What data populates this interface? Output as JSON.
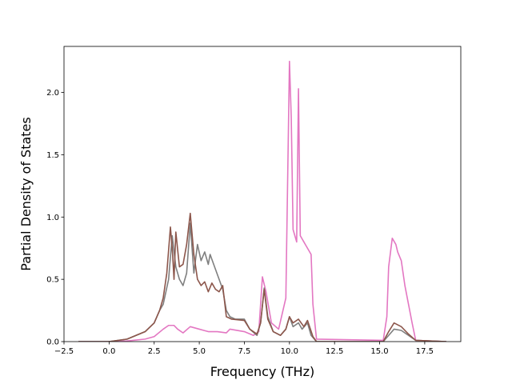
{
  "chart_data": {
    "type": "line",
    "title": "",
    "xlabel": "Frequency (THz)",
    "ylabel": "Partial Density of States",
    "xlim": [
      -2.5,
      19.5
    ],
    "ylim": [
      0,
      2.37
    ],
    "xticks": [
      -2.5,
      0.0,
      2.5,
      5.0,
      7.5,
      10.0,
      12.5,
      15.0,
      17.5
    ],
    "xtick_labels": [
      "−2.5",
      "0.0",
      "2.5",
      "5.0",
      "7.5",
      "10.0",
      "12.5",
      "15.0",
      "17.5"
    ],
    "yticks": [
      0.0,
      0.5,
      1.0,
      1.5,
      2.0
    ],
    "ytick_labels": [
      "0.0",
      "0.5",
      "1.0",
      "1.5",
      "2.0"
    ],
    "grid": false,
    "legend": "none",
    "series": [
      {
        "color": "#e377c2",
        "points": [
          [
            -1.7,
            0
          ],
          [
            0,
            0
          ],
          [
            1,
            0.005
          ],
          [
            2,
            0.02
          ],
          [
            2.5,
            0.04
          ],
          [
            3,
            0.1
          ],
          [
            3.3,
            0.13
          ],
          [
            3.6,
            0.13
          ],
          [
            3.8,
            0.1
          ],
          [
            4.1,
            0.07
          ],
          [
            4.5,
            0.12
          ],
          [
            5,
            0.1
          ],
          [
            5.5,
            0.08
          ],
          [
            6,
            0.08
          ],
          [
            6.5,
            0.07
          ],
          [
            6.7,
            0.1
          ],
          [
            7.5,
            0.08
          ],
          [
            8,
            0.05
          ],
          [
            8.3,
            0.08
          ],
          [
            8.5,
            0.52
          ],
          [
            8.7,
            0.4
          ],
          [
            9,
            0.15
          ],
          [
            9.4,
            0.1
          ],
          [
            9.8,
            0.35
          ],
          [
            10,
            2.25
          ],
          [
            10.1,
            1.8
          ],
          [
            10.2,
            0.9
          ],
          [
            10.4,
            0.8
          ],
          [
            10.5,
            2.03
          ],
          [
            10.6,
            0.85
          ],
          [
            10.8,
            0.8
          ],
          [
            11,
            0.75
          ],
          [
            11.2,
            0.7
          ],
          [
            11.3,
            0.3
          ],
          [
            11.5,
            0.02
          ],
          [
            15.2,
            0.01
          ],
          [
            15.4,
            0.2
          ],
          [
            15.5,
            0.6
          ],
          [
            15.7,
            0.83
          ],
          [
            15.9,
            0.78
          ],
          [
            16,
            0.72
          ],
          [
            16.2,
            0.65
          ],
          [
            16.4,
            0.45
          ],
          [
            16.6,
            0.3
          ],
          [
            16.8,
            0.15
          ],
          [
            17,
            0.01
          ],
          [
            18.7,
            0
          ]
        ]
      },
      {
        "color": "#7f7f7f",
        "points": [
          [
            -1.7,
            0
          ],
          [
            0,
            0
          ],
          [
            1,
            0.02
          ],
          [
            2,
            0.08
          ],
          [
            2.5,
            0.15
          ],
          [
            2.8,
            0.25
          ],
          [
            3,
            0.3
          ],
          [
            3.3,
            0.5
          ],
          [
            3.5,
            0.85
          ],
          [
            3.7,
            0.6
          ],
          [
            3.9,
            0.5
          ],
          [
            4.1,
            0.45
          ],
          [
            4.3,
            0.55
          ],
          [
            4.5,
            0.95
          ],
          [
            4.6,
            0.75
          ],
          [
            4.7,
            0.55
          ],
          [
            4.9,
            0.78
          ],
          [
            5.1,
            0.65
          ],
          [
            5.3,
            0.72
          ],
          [
            5.5,
            0.62
          ],
          [
            5.6,
            0.7
          ],
          [
            5.8,
            0.62
          ],
          [
            6.1,
            0.5
          ],
          [
            6.3,
            0.42
          ],
          [
            6.5,
            0.25
          ],
          [
            6.7,
            0.2
          ],
          [
            7,
            0.18
          ],
          [
            7.5,
            0.18
          ],
          [
            7.8,
            0.1
          ],
          [
            8.2,
            0.05
          ],
          [
            8.4,
            0.15
          ],
          [
            8.6,
            0.43
          ],
          [
            8.8,
            0.2
          ],
          [
            9.1,
            0.08
          ],
          [
            9.5,
            0.05
          ],
          [
            9.8,
            0.1
          ],
          [
            10,
            0.2
          ],
          [
            10.2,
            0.12
          ],
          [
            10.5,
            0.15
          ],
          [
            10.7,
            0.1
          ],
          [
            11,
            0.15
          ],
          [
            11.2,
            0.05
          ],
          [
            11.5,
            0
          ],
          [
            15.2,
            0
          ],
          [
            15.5,
            0.05
          ],
          [
            15.8,
            0.1
          ],
          [
            16.2,
            0.09
          ],
          [
            16.6,
            0.05
          ],
          [
            17,
            0.01
          ],
          [
            18.7,
            0
          ]
        ]
      },
      {
        "color": "#8c564b",
        "points": [
          [
            -1.7,
            0
          ],
          [
            0,
            0
          ],
          [
            1,
            0.02
          ],
          [
            2,
            0.08
          ],
          [
            2.5,
            0.15
          ],
          [
            2.8,
            0.25
          ],
          [
            3,
            0.35
          ],
          [
            3.2,
            0.55
          ],
          [
            3.4,
            0.92
          ],
          [
            3.5,
            0.75
          ],
          [
            3.6,
            0.5
          ],
          [
            3.7,
            0.88
          ],
          [
            3.9,
            0.6
          ],
          [
            4.1,
            0.62
          ],
          [
            4.3,
            0.78
          ],
          [
            4.5,
            1.03
          ],
          [
            4.7,
            0.7
          ],
          [
            4.9,
            0.5
          ],
          [
            5.1,
            0.45
          ],
          [
            5.3,
            0.48
          ],
          [
            5.5,
            0.4
          ],
          [
            5.7,
            0.47
          ],
          [
            5.9,
            0.42
          ],
          [
            6.1,
            0.4
          ],
          [
            6.3,
            0.45
          ],
          [
            6.5,
            0.2
          ],
          [
            6.8,
            0.18
          ],
          [
            7.5,
            0.17
          ],
          [
            7.8,
            0.1
          ],
          [
            8.2,
            0.06
          ],
          [
            8.4,
            0.15
          ],
          [
            8.6,
            0.42
          ],
          [
            8.8,
            0.18
          ],
          [
            9.1,
            0.08
          ],
          [
            9.5,
            0.05
          ],
          [
            9.8,
            0.1
          ],
          [
            10,
            0.2
          ],
          [
            10.2,
            0.15
          ],
          [
            10.5,
            0.18
          ],
          [
            10.8,
            0.12
          ],
          [
            11,
            0.17
          ],
          [
            11.3,
            0.04
          ],
          [
            11.5,
            0
          ],
          [
            15.2,
            0
          ],
          [
            15.5,
            0.08
          ],
          [
            15.8,
            0.15
          ],
          [
            16.2,
            0.12
          ],
          [
            16.6,
            0.06
          ],
          [
            17,
            0.01
          ],
          [
            18.7,
            0
          ]
        ]
      }
    ]
  }
}
